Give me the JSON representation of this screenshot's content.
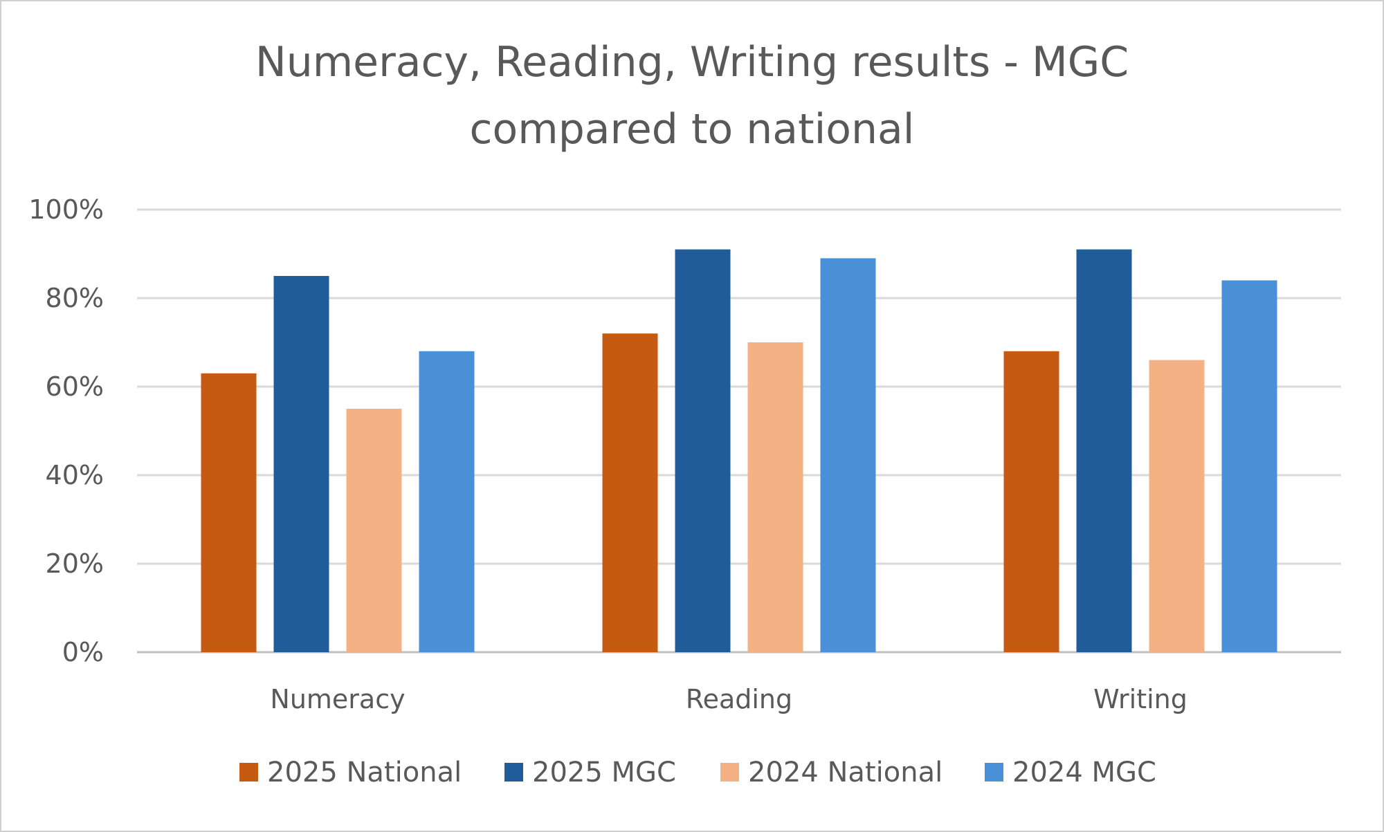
{
  "chart_data": {
    "type": "bar",
    "title_lines": [
      "Numeracy, Reading, Writing results - MGC",
      "compared to national"
    ],
    "categories": [
      "Numeracy",
      "Reading",
      "Writing"
    ],
    "series": [
      {
        "name": "2025 National",
        "color": "#C55A11",
        "values": [
          63,
          72,
          68
        ]
      },
      {
        "name": "2025 MGC",
        "color": "#1F5C99",
        "values": [
          85,
          91,
          91
        ]
      },
      {
        "name": "2024 National",
        "color": "#F4B183",
        "values": [
          55,
          70,
          66
        ]
      },
      {
        "name": "2024 MGC",
        "color": "#4A90D9",
        "values": [
          68,
          89,
          84
        ]
      }
    ],
    "yticks": [
      "0%",
      "20%",
      "40%",
      "60%",
      "80%",
      "100%"
    ],
    "ylim": [
      0,
      100
    ],
    "xlabel": "",
    "ylabel": "",
    "grid": true,
    "legend_position": "bottom"
  }
}
